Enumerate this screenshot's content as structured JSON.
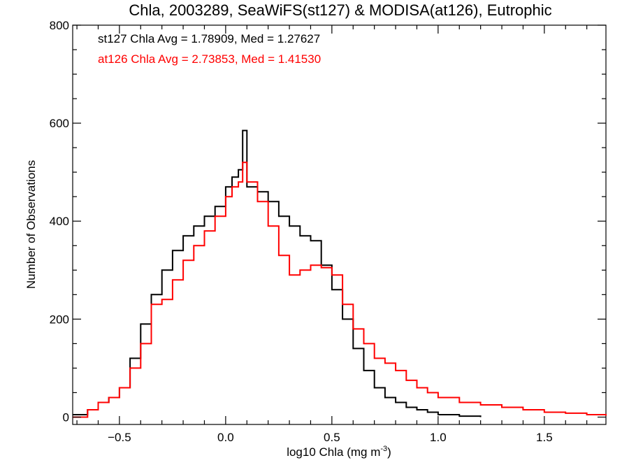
{
  "chart_data": {
    "type": "line",
    "title": "Chla, 2003289, SeaWiFS(st127) & MODISA(at126), Eutrophic",
    "xlabel": "log10 Chla (mg m",
    "xlabel_sup": "-3",
    "xlabel_close": ")",
    "ylabel": "Number of Observations",
    "xlim": [
      -0.72,
      1.79
    ],
    "ylim": [
      -15,
      800
    ],
    "xticks": [
      -0.5,
      0.0,
      0.5,
      1.0,
      1.5
    ],
    "xtick_labels": [
      "−0.5",
      "0.0",
      "0.5",
      "1.0",
      "1.5"
    ],
    "yticks": [
      0,
      200,
      400,
      600,
      800
    ],
    "ytick_labels": [
      "0",
      "200",
      "400",
      "600",
      "800"
    ],
    "grid": false,
    "annotations": [
      {
        "text": "st127 Chla Avg = 1.78909, Med = 1.27627",
        "color": "#000000"
      },
      {
        "text": "at126 Chla Avg = 2.73853, Med = 1.41530",
        "color": "#ff0000"
      }
    ],
    "series": [
      {
        "color": "#000000",
        "x": [
          -0.72,
          -0.65,
          -0.6,
          -0.55,
          -0.5,
          -0.45,
          -0.4,
          -0.35,
          -0.3,
          -0.25,
          -0.2,
          -0.15,
          -0.1,
          -0.05,
          0.0,
          0.03,
          0.06,
          0.08,
          0.1,
          0.15,
          0.2,
          0.25,
          0.3,
          0.35,
          0.4,
          0.45,
          0.5,
          0.55,
          0.6,
          0.65,
          0.7,
          0.75,
          0.8,
          0.85,
          0.9,
          0.95,
          1.0,
          1.1,
          1.2
        ],
        "values": [
          5,
          15,
          30,
          40,
          60,
          120,
          190,
          250,
          300,
          340,
          370,
          390,
          410,
          430,
          470,
          490,
          505,
          585,
          470,
          460,
          440,
          410,
          390,
          370,
          360,
          310,
          260,
          200,
          140,
          95,
          60,
          40,
          30,
          20,
          15,
          10,
          5,
          2,
          0
        ]
      },
      {
        "color": "#ff0000",
        "x": [
          -0.72,
          -0.65,
          -0.6,
          -0.55,
          -0.5,
          -0.45,
          -0.4,
          -0.35,
          -0.3,
          -0.25,
          -0.2,
          -0.15,
          -0.1,
          -0.05,
          0.0,
          0.03,
          0.06,
          0.08,
          0.1,
          0.15,
          0.2,
          0.25,
          0.3,
          0.35,
          0.4,
          0.45,
          0.5,
          0.55,
          0.6,
          0.65,
          0.7,
          0.75,
          0.8,
          0.85,
          0.9,
          0.95,
          1.0,
          1.1,
          1.2,
          1.3,
          1.4,
          1.5,
          1.6,
          1.7,
          1.79
        ],
        "values": [
          0,
          15,
          30,
          40,
          60,
          100,
          150,
          230,
          240,
          280,
          320,
          350,
          380,
          410,
          450,
          470,
          480,
          520,
          480,
          440,
          390,
          330,
          290,
          300,
          310,
          305,
          290,
          230,
          180,
          150,
          120,
          110,
          95,
          75,
          60,
          50,
          40,
          30,
          25,
          20,
          15,
          10,
          8,
          5,
          3
        ]
      }
    ]
  }
}
